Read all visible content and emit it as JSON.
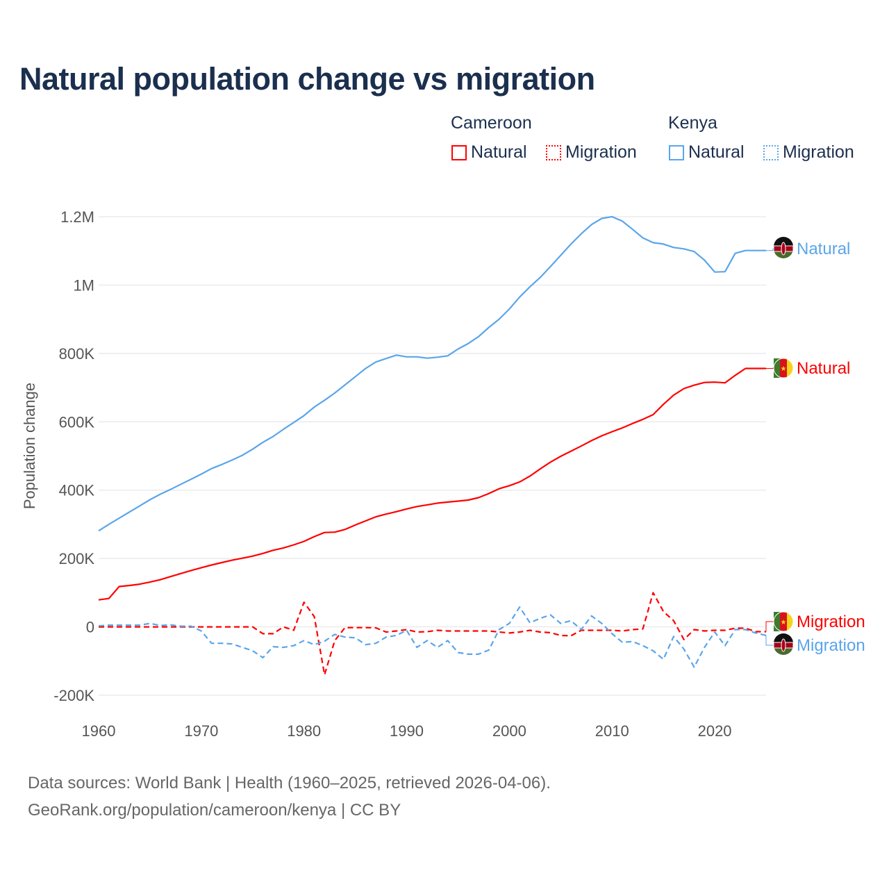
{
  "chart_data": {
    "type": "line",
    "title": "Natural population change vs migration",
    "xlabel": "",
    "ylabel": "Population change",
    "xlim": [
      1960,
      2025
    ],
    "ylim": [
      -200000,
      1200000
    ],
    "x_ticks": [
      "1960",
      "1970",
      "1980",
      "1990",
      "2000",
      "2010",
      "2020"
    ],
    "y_ticks": [
      {
        "value": -200000,
        "label": "-200K"
      },
      {
        "value": 0,
        "label": "0"
      },
      {
        "value": 200000,
        "label": "200K"
      },
      {
        "value": 400000,
        "label": "400K"
      },
      {
        "value": 600000,
        "label": "600K"
      },
      {
        "value": 800000,
        "label": "800K"
      },
      {
        "value": 1000000,
        "label": "1M"
      },
      {
        "value": 1200000,
        "label": "1.2M"
      }
    ],
    "grid": true,
    "legend_placement": "top-right",
    "legend_groups": [
      {
        "country": "Cameroon",
        "items": [
          "Natural",
          "Migration"
        ]
      },
      {
        "country": "Kenya",
        "items": [
          "Natural",
          "Migration"
        ]
      }
    ],
    "start_year": 1960,
    "unit_multiplier": 1000,
    "series": [
      {
        "name": "Kenya Natural",
        "country": "Kenya",
        "kind": "Natural",
        "color": "#5aa5ea",
        "dash": false,
        "end_label": "Natural",
        "values": [
          281,
          300,
          318,
          336,
          354,
          372,
          388,
          402,
          417,
          432,
          447,
          463,
          475,
          488,
          502,
          520,
          540,
          557,
          578,
          598,
          618,
          643,
          663,
          684,
          708,
          732,
          756,
          775,
          785,
          795,
          790,
          790,
          786,
          789,
          793,
          813,
          829,
          849,
          876,
          900,
          930,
          965,
          995,
          1022,
          1054,
          1087,
          1120,
          1150,
          1177,
          1195,
          1200,
          1187,
          1163,
          1138,
          1124,
          1120,
          1110,
          1106,
          1098,
          1073,
          1038,
          1039,
          1093,
          1101,
          1101,
          1101
        ]
      },
      {
        "name": "Cameroon Natural",
        "country": "Cameroon",
        "kind": "Natural",
        "color": "#ff0000",
        "dash": false,
        "end_label": "Natural",
        "values": [
          79,
          83,
          118,
          121,
          125,
          131,
          138,
          147,
          156,
          165,
          173,
          181,
          188,
          195,
          201,
          207,
          215,
          224,
          231,
          240,
          250,
          264,
          276,
          277,
          285,
          298,
          310,
          322,
          330,
          337,
          345,
          352,
          357,
          362,
          365,
          368,
          371,
          378,
          390,
          404,
          413,
          424,
          441,
          462,
          482,
          499,
          514,
          529,
          545,
          559,
          571,
          582,
          595,
          607,
          621,
          651,
          678,
          697,
          707,
          715,
          716,
          714,
          736,
          756,
          756,
          756
        ]
      },
      {
        "name": "Cameroon Migration",
        "country": "Cameroon",
        "kind": "Migration",
        "color": "#ff0000",
        "dash": true,
        "end_label": "Migration",
        "values": [
          0,
          0,
          0,
          0,
          0,
          0,
          0,
          0,
          0,
          0,
          0,
          0,
          0,
          0,
          0,
          0,
          -20,
          -20,
          0,
          -10,
          72,
          30,
          -140,
          -40,
          -2,
          -2,
          -2,
          -3,
          -15,
          -12,
          -8,
          -15,
          -14,
          -10,
          -12,
          -12,
          -12,
          -12,
          -12,
          -15,
          -18,
          -15,
          -10,
          -15,
          -17,
          -25,
          -26,
          -10,
          -10,
          -10,
          -10,
          -12,
          -8,
          -6,
          100,
          45,
          18,
          -37,
          -8,
          -12,
          -10,
          -10,
          -4,
          -4,
          -14,
          -14
        ]
      },
      {
        "name": "Kenya Migration",
        "country": "Kenya",
        "kind": "Migration",
        "color": "#5aa5ea",
        "dash": true,
        "end_label": "Migration",
        "values": [
          3,
          5,
          5,
          5,
          5,
          10,
          4,
          6,
          2,
          2,
          -12,
          -48,
          -48,
          -50,
          -60,
          -70,
          -90,
          -58,
          -60,
          -55,
          -40,
          -52,
          -42,
          -22,
          -30,
          -32,
          -52,
          -48,
          -30,
          -25,
          -10,
          -60,
          -40,
          -60,
          -40,
          -75,
          -80,
          -80,
          -68,
          -8,
          10,
          58,
          12,
          25,
          35,
          10,
          18,
          -8,
          32,
          10,
          -20,
          -45,
          -43,
          -55,
          -70,
          -95,
          -28,
          -65,
          -118,
          -60,
          -15,
          -55,
          -8,
          -8,
          -18,
          -25
        ]
      }
    ]
  },
  "legend": {
    "cameroon": "Cameroon",
    "kenya": "Kenya",
    "natural": "Natural",
    "migration": "Migration"
  },
  "footer": {
    "line1": "Data sources: World Bank | Health (1960–2025, retrieved 2026-04-06).",
    "line2": "GeoRank.org/population/cameroon/kenya | CC BY"
  }
}
